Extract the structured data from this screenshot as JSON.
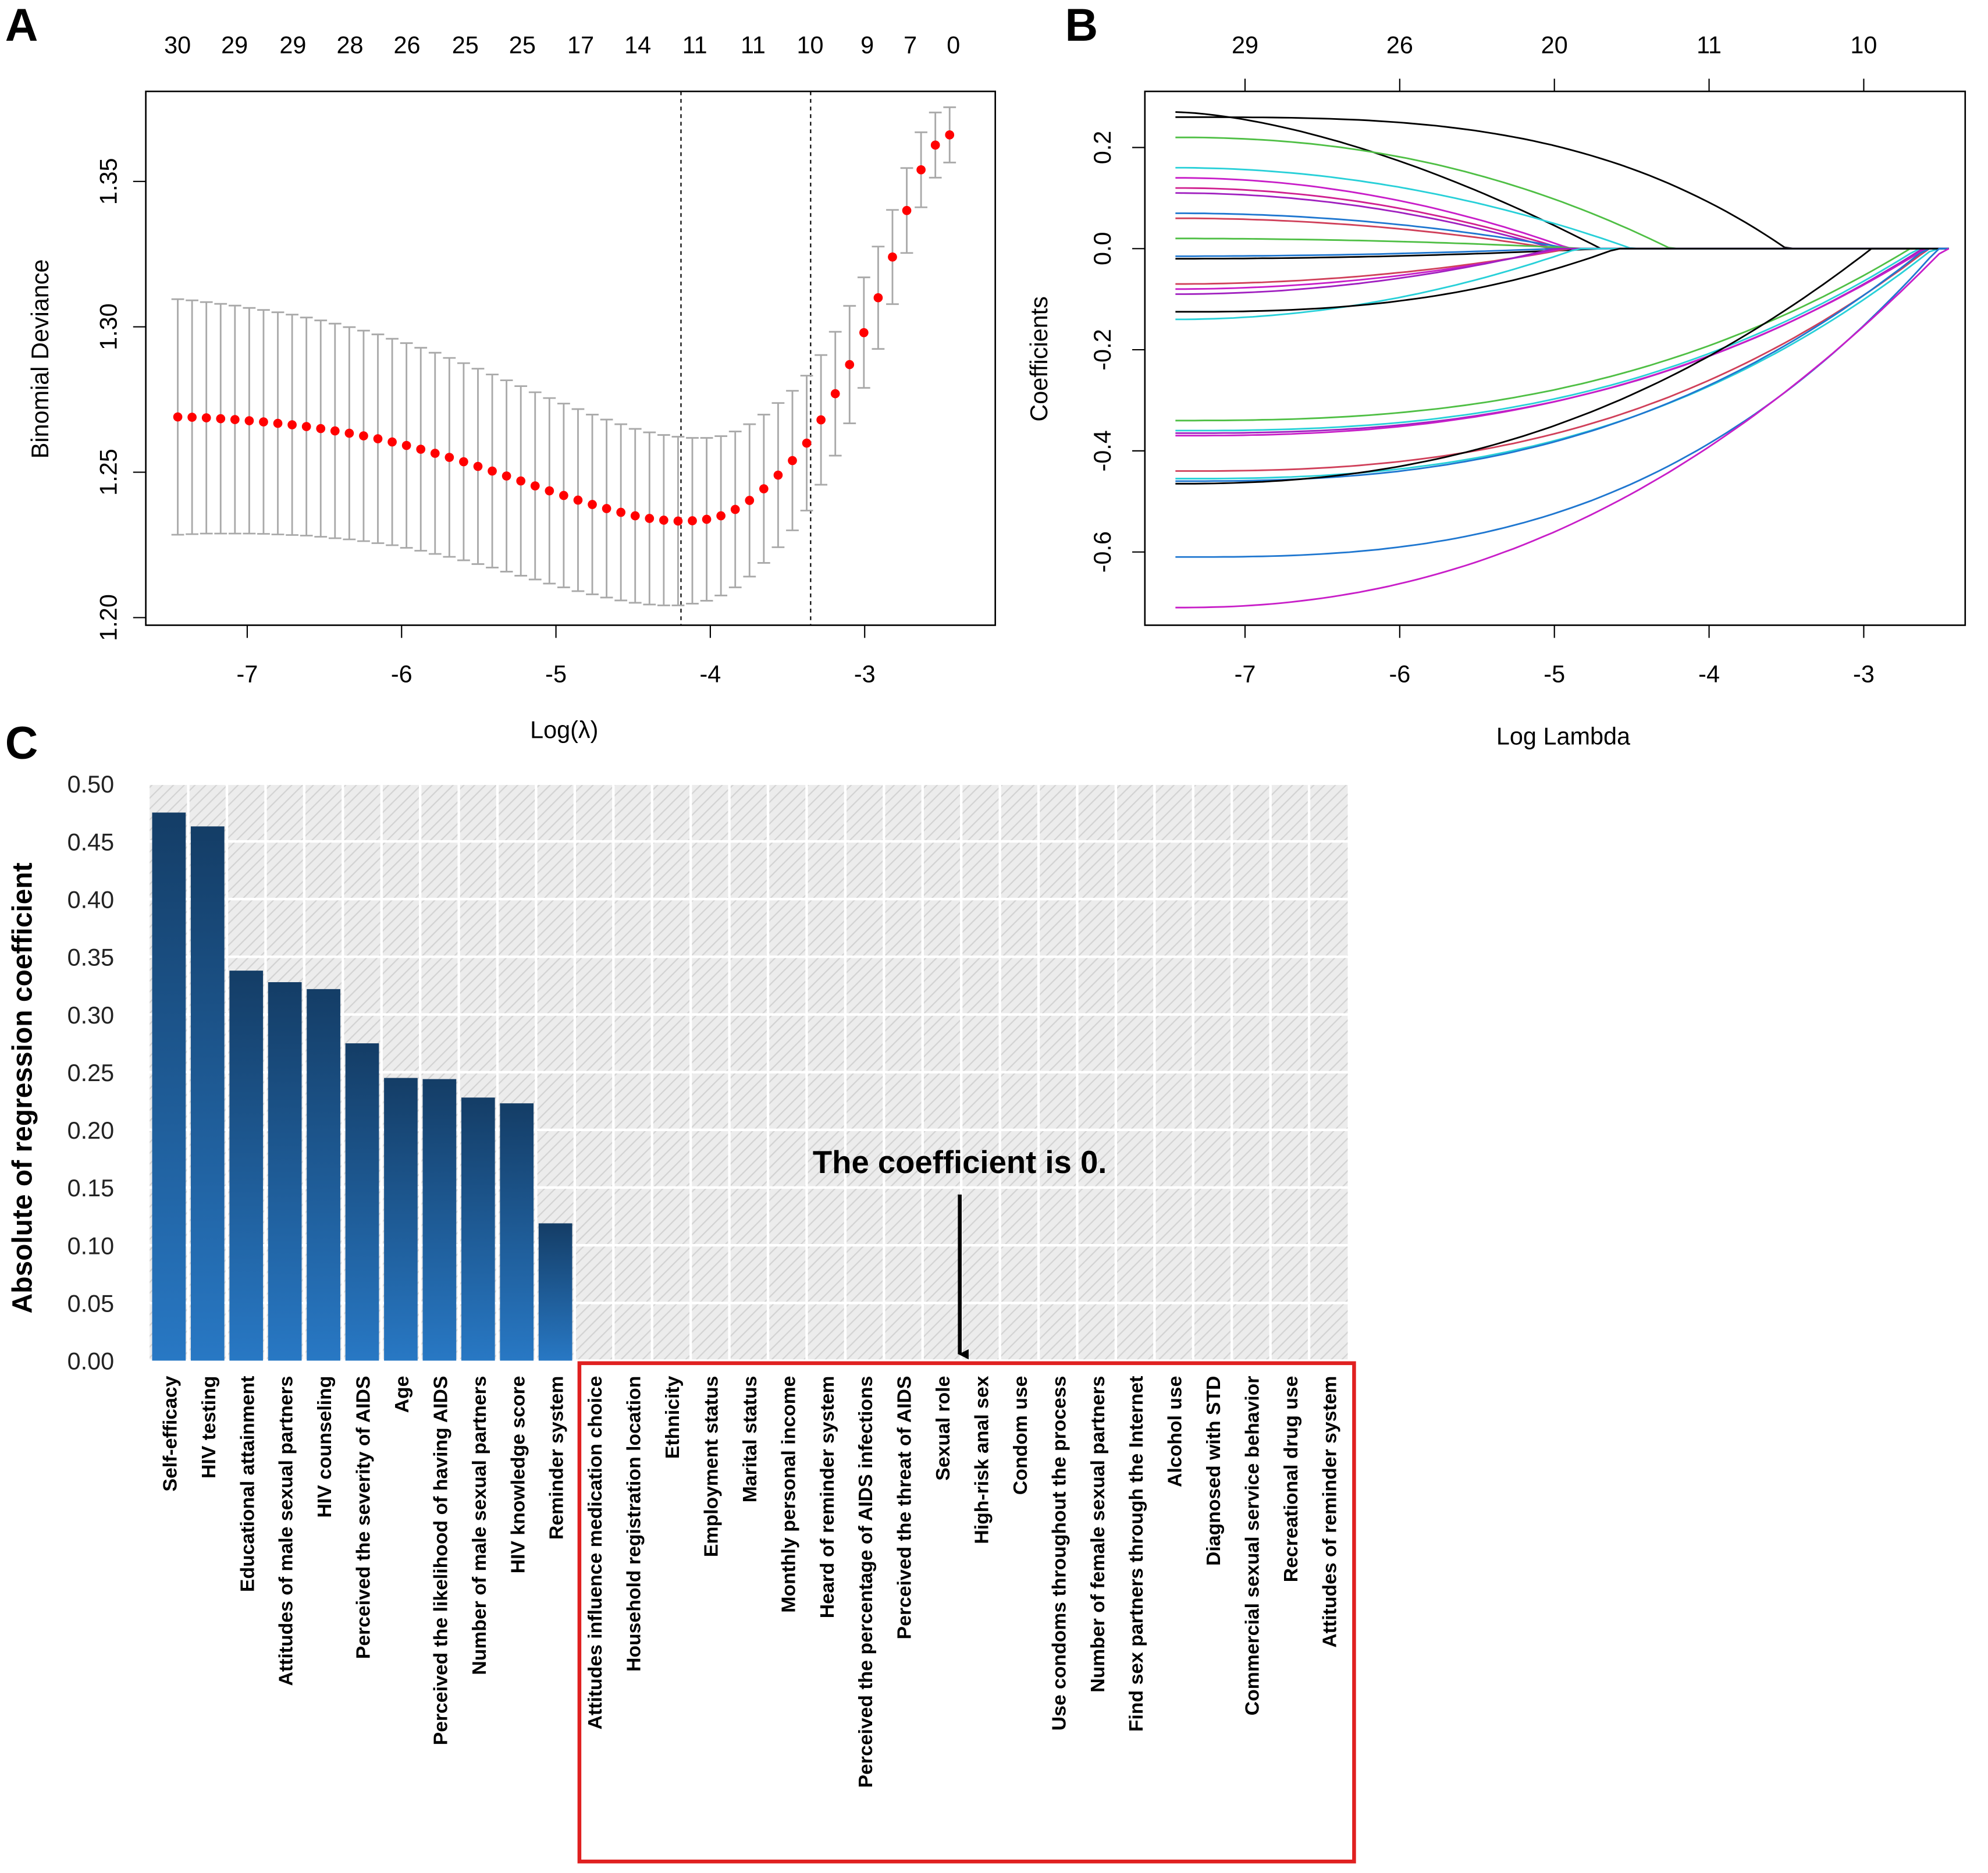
{
  "panels": {
    "a": "A",
    "b": "B",
    "c": "C"
  },
  "chart_data": [
    {
      "type": "scatter",
      "panel": "A",
      "title": "",
      "xlabel": "Log(λ)",
      "ylabel": "Binomial Deviance",
      "xlim": [
        -7.6,
        -2.3
      ],
      "ylim": [
        1.195,
        1.38
      ],
      "xticks": [
        "-7",
        "-6",
        "-5",
        "-4",
        "-3"
      ],
      "yticks": [
        "1.20",
        "1.25",
        "1.30",
        "1.35"
      ],
      "top_axis_labels": [
        "30",
        "29",
        "29",
        "28",
        "26",
        "25",
        "25",
        "17",
        "14",
        "11",
        "11",
        "10",
        "9",
        "7",
        "0"
      ],
      "vlines": [
        -4.19,
        -3.35
      ],
      "log_lambda_start": -7.45,
      "log_lambda_step": 0.0926,
      "y": [
        1.269,
        1.2689,
        1.2687,
        1.2684,
        1.2681,
        1.2677,
        1.2673,
        1.2668,
        1.2663,
        1.2657,
        1.265,
        1.2642,
        1.2634,
        1.2625,
        1.2615,
        1.2604,
        1.2592,
        1.2579,
        1.2565,
        1.2551,
        1.2536,
        1.252,
        1.2504,
        1.2487,
        1.247,
        1.2453,
        1.2436,
        1.242,
        1.2404,
        1.2389,
        1.2375,
        1.2362,
        1.235,
        1.2341,
        1.2335,
        1.2332,
        1.2333,
        1.2338,
        1.235,
        1.2372,
        1.2403,
        1.2443,
        1.249,
        1.254,
        1.26,
        1.268,
        1.277,
        1.287,
        1.298,
        1.31,
        1.324,
        1.34,
        1.354,
        1.3625,
        1.366
      ],
      "se": [
        0.0405,
        0.0402,
        0.0398,
        0.0395,
        0.0392,
        0.0388,
        0.0385,
        0.0382,
        0.0379,
        0.0375,
        0.0372,
        0.0369,
        0.0365,
        0.0362,
        0.0359,
        0.0355,
        0.0352,
        0.0349,
        0.0346,
        0.0342,
        0.0339,
        0.0336,
        0.0332,
        0.0329,
        0.0326,
        0.0322,
        0.0319,
        0.0316,
        0.0313,
        0.0309,
        0.0306,
        0.0303,
        0.0299,
        0.0296,
        0.0293,
        0.029,
        0.0285,
        0.028,
        0.0274,
        0.0268,
        0.0262,
        0.0255,
        0.0248,
        0.024,
        0.0232,
        0.0223,
        0.0213,
        0.0202,
        0.019,
        0.0176,
        0.0162,
        0.0146,
        0.0129,
        0.0112,
        0.0095
      ],
      "colors": {
        "point": "#ff0000",
        "errorbar": "#a9a9a9"
      }
    },
    {
      "type": "line",
      "panel": "B",
      "xlabel": "Log Lambda",
      "ylabel": "Coefficients",
      "xlim": [
        -7.6,
        -2.35
      ],
      "ylim": [
        -0.74,
        0.31
      ],
      "xticks": [
        "-7",
        "-6",
        "-5",
        "-4",
        "-3"
      ],
      "yticks": [
        "0.2",
        "0.0",
        "-0.2",
        "-0.4",
        "-0.6"
      ],
      "top_axis_labels": [
        "29",
        "26",
        "20",
        "11",
        "10"
      ],
      "x_start": -7.45,
      "x_end": -2.45,
      "series": [
        {
          "start": 0.27,
          "zero_at": -4.7,
          "power": 1.6,
          "color": "#000000"
        },
        {
          "start": 0.26,
          "zero_at": -3.5,
          "power": 3.2,
          "color": "#000000"
        },
        {
          "start": 0.22,
          "zero_at": -4.25,
          "power": 2.2,
          "color": "#4fbf45"
        },
        {
          "start": 0.16,
          "zero_at": -4.5,
          "power": 2.0,
          "color": "#28d0d8"
        },
        {
          "start": 0.14,
          "zero_at": -4.9,
          "power": 2.0,
          "color": "#c81ec8"
        },
        {
          "start": 0.12,
          "zero_at": -4.95,
          "power": 2.0,
          "color": "#d02090"
        },
        {
          "start": 0.11,
          "zero_at": -5.0,
          "power": 2.0,
          "color": "#a020c0"
        },
        {
          "start": 0.07,
          "zero_at": -4.9,
          "power": 2.0,
          "color": "#1f77d0"
        },
        {
          "start": 0.06,
          "zero_at": -5.0,
          "power": 2.0,
          "color": "#d0405a"
        },
        {
          "start": 0.02,
          "zero_at": -4.8,
          "power": 2.0,
          "color": "#4fbf45"
        },
        {
          "start": -0.02,
          "zero_at": -4.7,
          "power": 2.0,
          "color": "#000000"
        },
        {
          "start": -0.015,
          "zero_at": -5.0,
          "power": 2.0,
          "color": "#1f77d0"
        },
        {
          "start": -0.07,
          "zero_at": -4.9,
          "power": 2.0,
          "color": "#d0405a"
        },
        {
          "start": -0.08,
          "zero_at": -4.95,
          "power": 2.0,
          "color": "#c81ec8"
        },
        {
          "start": -0.09,
          "zero_at": -5.0,
          "power": 2.0,
          "color": "#a020c0"
        },
        {
          "start": -0.14,
          "zero_at": -4.85,
          "power": 2.0,
          "color": "#28d0d8"
        },
        {
          "start": -0.125,
          "zero_at": -4.6,
          "power": 2.6,
          "color": "#000000"
        },
        {
          "start": -0.34,
          "zero_at": -2.7,
          "power": 2.6,
          "color": "#4fbf45"
        },
        {
          "start": -0.36,
          "zero_at": -2.65,
          "power": 2.6,
          "color": "#28d0d8"
        },
        {
          "start": -0.365,
          "zero_at": -2.62,
          "power": 2.6,
          "color": "#a020c0"
        },
        {
          "start": -0.37,
          "zero_at": -2.6,
          "power": 2.5,
          "color": "#c81ec8"
        },
        {
          "start": -0.44,
          "zero_at": -2.58,
          "power": 2.6,
          "color": "#d0405a"
        },
        {
          "start": -0.455,
          "zero_at": -2.55,
          "power": 2.6,
          "color": "#28d0d8"
        },
        {
          "start": -0.46,
          "zero_at": -2.6,
          "power": 2.6,
          "color": "#1f77d0"
        },
        {
          "start": -0.465,
          "zero_at": -2.95,
          "power": 2.3,
          "color": "#000000"
        },
        {
          "start": -0.61,
          "zero_at": -2.52,
          "power": 2.8,
          "color": "#1f77d0"
        },
        {
          "start": -0.71,
          "zero_at": -2.48,
          "power": 2.2,
          "color": "#c81ec8"
        }
      ]
    },
    {
      "type": "bar",
      "panel": "C",
      "ylabel": "Absolute of regression coefficient",
      "ylim": [
        0,
        0.5
      ],
      "yticks": [
        "0.00",
        "0.05",
        "0.10",
        "0.15",
        "0.20",
        "0.25",
        "0.30",
        "0.35",
        "0.40",
        "0.45",
        "0.50"
      ],
      "annotation": "The coefficient is 0.",
      "categories": [
        "Self-efficacy",
        "HIV testing",
        "Educational attainment",
        "Attitudes of male sexual partners",
        "HIV counseling",
        "Perceived the severity of AIDS",
        "Age",
        "Perceived the likelihood of having AIDS",
        "Number of male sexual partners",
        "HIV knowledge score",
        "Reminder system",
        "Attitudes influence medication choice",
        "Household registration location",
        "Ethnicity",
        "Employment status",
        "Marital status",
        "Monthly personal income",
        "Heard of reminder system",
        "Perceived the percentage of AIDS infections",
        "Perceived the threat of AIDS",
        "Sexual role",
        "High-risk anal sex",
        "Condom use",
        "Use condoms throughout the process",
        "Number of female sexual partners",
        "Find sex partners through the Internet",
        "Alcohol use",
        "Diagnosed with STD",
        "Commercial sexual service behavior",
        "Recreational drug use",
        "Attitudes of reminder system"
      ],
      "values": [
        0.475,
        0.463,
        0.338,
        0.328,
        0.322,
        0.275,
        0.245,
        0.244,
        0.228,
        0.223,
        0.119,
        0,
        0,
        0,
        0,
        0,
        0,
        0,
        0,
        0,
        0,
        0,
        0,
        0,
        0,
        0,
        0,
        0,
        0,
        0,
        0
      ],
      "colors": {
        "bar_top": "#143d66",
        "bar_bottom": "#2878c4",
        "highlight_box": "#e02020"
      }
    }
  ]
}
